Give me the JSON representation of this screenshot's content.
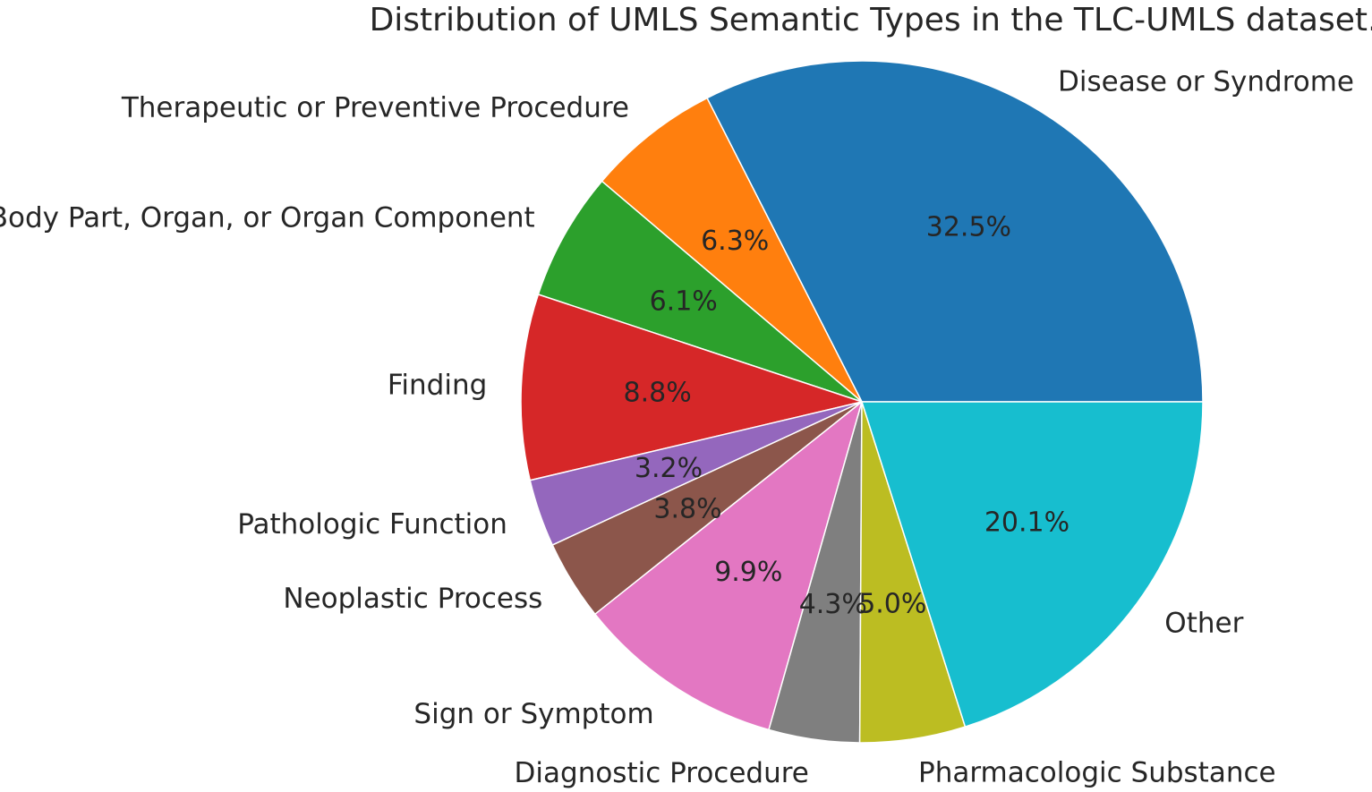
{
  "chart_data": {
    "type": "pie",
    "title": "Distribution of UMLS Semantic Types in the TLC-UMLS dataset.",
    "counterclock": true,
    "start_angle_deg": 0,
    "slices": [
      {
        "label": "Disease or Syndrome",
        "value": 32.5,
        "pct_label": "32.5%",
        "color": "#1f77b4"
      },
      {
        "label": "Therapeutic or Preventive Procedure",
        "value": 6.3,
        "pct_label": "6.3%",
        "color": "#ff7f0e"
      },
      {
        "label": "Body Part, Organ, or Organ Component",
        "value": 6.1,
        "pct_label": "6.1%",
        "color": "#2ca02c"
      },
      {
        "label": "Finding",
        "value": 8.8,
        "pct_label": "8.8%",
        "color": "#d62728"
      },
      {
        "label": "Pathologic Function",
        "value": 3.2,
        "pct_label": "3.2%",
        "color": "#9467bd"
      },
      {
        "label": "Neoplastic Process",
        "value": 3.8,
        "pct_label": "3.8%",
        "color": "#8c564b"
      },
      {
        "label": "Sign or Symptom",
        "value": 9.9,
        "pct_label": "9.9%",
        "color": "#e377c2"
      },
      {
        "label": "Diagnostic Procedure",
        "value": 4.3,
        "pct_label": "4.3%",
        "color": "#7f7f7f"
      },
      {
        "label": "Pharmacologic Substance",
        "value": 5.0,
        "pct_label": "5.0%",
        "color": "#bcbd22"
      },
      {
        "label": "Other",
        "value": 20.1,
        "pct_label": "20.1%",
        "color": "#17becf"
      }
    ]
  }
}
